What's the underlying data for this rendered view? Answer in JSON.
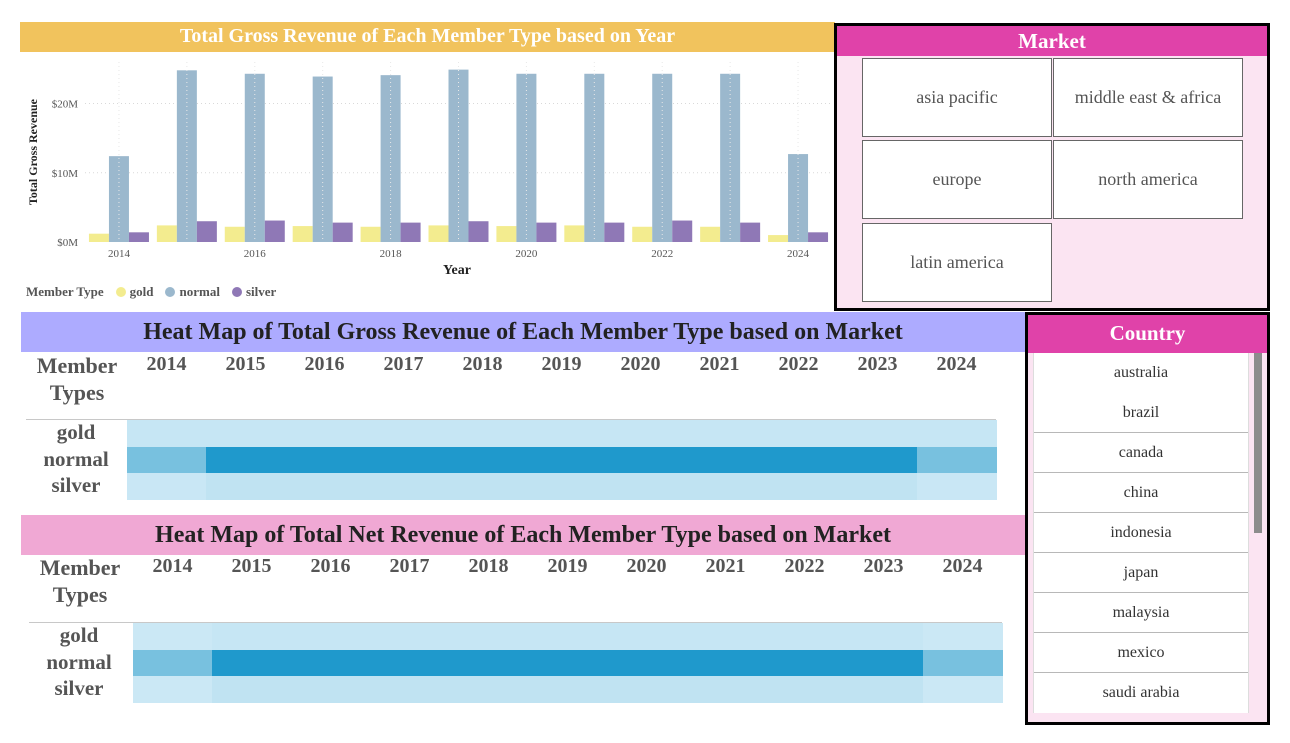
{
  "bar_chart": {
    "title": "Total Gross Revenue of Each Member Type based on Year",
    "legend_title": "Member Type",
    "chart_data": {
      "type": "bar",
      "title": "Total Gross Revenue of Each Member Type based on Year",
      "xlabel": "Year",
      "ylabel": "Total Gross Revenue",
      "categories": [
        2014,
        2015,
        2016,
        2017,
        2018,
        2019,
        2020,
        2021,
        2022,
        2023,
        2024
      ],
      "x_tick_labels": [
        "2014",
        "2016",
        "2018",
        "2020",
        "2022",
        "2024"
      ],
      "y_ticks": [
        0,
        10,
        20
      ],
      "y_tick_labels": [
        "$0M",
        "$10M",
        "$20M"
      ],
      "ylim": [
        0,
        26
      ],
      "grid": true,
      "legend_position": "bottom-left",
      "series": [
        {
          "name": "gold",
          "color": "#f3ec8f",
          "values": [
            1.2,
            2.4,
            2.2,
            2.3,
            2.2,
            2.4,
            2.3,
            2.4,
            2.2,
            2.2,
            1.0
          ]
        },
        {
          "name": "normal",
          "color": "#9bb8cd",
          "values": [
            12.4,
            24.8,
            24.3,
            23.9,
            24.1,
            24.9,
            24.3,
            24.3,
            24.3,
            24.3,
            12.7
          ]
        },
        {
          "name": "silver",
          "color": "#8f78b6",
          "values": [
            1.4,
            3.0,
            3.1,
            2.8,
            2.8,
            3.0,
            2.8,
            2.8,
            3.1,
            2.8,
            1.4
          ]
        }
      ]
    }
  },
  "market_slicer": {
    "title": "Market",
    "items": [
      "asia pacific",
      "middle east & africa",
      "europe",
      "north america",
      "latin america"
    ]
  },
  "heatmap_gross": {
    "title": "Heat Map of Total Gross Revenue of Each Member Type based on Market",
    "corner_label_line1": "Member",
    "corner_label_line2": "Types",
    "years": [
      "2014",
      "2015",
      "2016",
      "2017",
      "2018",
      "2019",
      "2020",
      "2021",
      "2022",
      "2023",
      "2024"
    ],
    "rows": [
      "gold",
      "normal",
      "silver"
    ],
    "colors": {
      "gold": [
        "#c6e6f4",
        "#c6e6f4",
        "#c6e6f4",
        "#c6e6f4",
        "#c6e6f4",
        "#c6e6f4",
        "#c6e6f4",
        "#c6e6f4",
        "#c6e6f4",
        "#c6e6f4",
        "#c6e6f4"
      ],
      "normal": [
        "#78c1df",
        "#1f99cc",
        "#1f99cc",
        "#1f99cc",
        "#1f99cc",
        "#1f99cc",
        "#1f99cc",
        "#1f99cc",
        "#1f99cc",
        "#1f99cc",
        "#78c1df"
      ],
      "silver": [
        "#c9e7f5",
        "#c0e3f2",
        "#c0e3f2",
        "#c0e3f2",
        "#c0e3f2",
        "#c0e3f2",
        "#c0e3f2",
        "#c0e3f2",
        "#c0e3f2",
        "#c0e3f2",
        "#c9e7f5"
      ]
    },
    "title_bg": "#adabff"
  },
  "heatmap_net": {
    "title": "Heat Map of Total Net Revenue of Each Member Type based on Market",
    "corner_label_line1": "Member",
    "corner_label_line2": "Types",
    "years": [
      "2014",
      "2015",
      "2016",
      "2017",
      "2018",
      "2019",
      "2020",
      "2021",
      "2022",
      "2023",
      "2024"
    ],
    "rows": [
      "gold",
      "normal",
      "silver"
    ],
    "colors": {
      "gold": [
        "#cbe8f5",
        "#c6e6f4",
        "#c6e6f4",
        "#c6e6f4",
        "#c6e6f4",
        "#c6e6f4",
        "#c6e6f4",
        "#c6e6f4",
        "#c6e6f4",
        "#c6e6f4",
        "#cbe8f5"
      ],
      "normal": [
        "#78c1df",
        "#1f99cc",
        "#1f99cc",
        "#1f99cc",
        "#1f99cc",
        "#1f99cc",
        "#1f99cc",
        "#1f99cc",
        "#1f99cc",
        "#1f99cc",
        "#78c1df"
      ],
      "silver": [
        "#cbe8f5",
        "#c0e3f2",
        "#c0e3f2",
        "#c0e3f2",
        "#c0e3f2",
        "#c0e3f2",
        "#c0e3f2",
        "#c0e3f2",
        "#c0e3f2",
        "#c0e3f2",
        "#cbe8f5"
      ]
    },
    "title_bg": "#f0a8d4"
  },
  "country_slicer": {
    "title": "Country",
    "items": [
      "australia",
      "brazil",
      "canada",
      "china",
      "indonesia",
      "japan",
      "malaysia",
      "mexico",
      "saudi arabia"
    ]
  }
}
